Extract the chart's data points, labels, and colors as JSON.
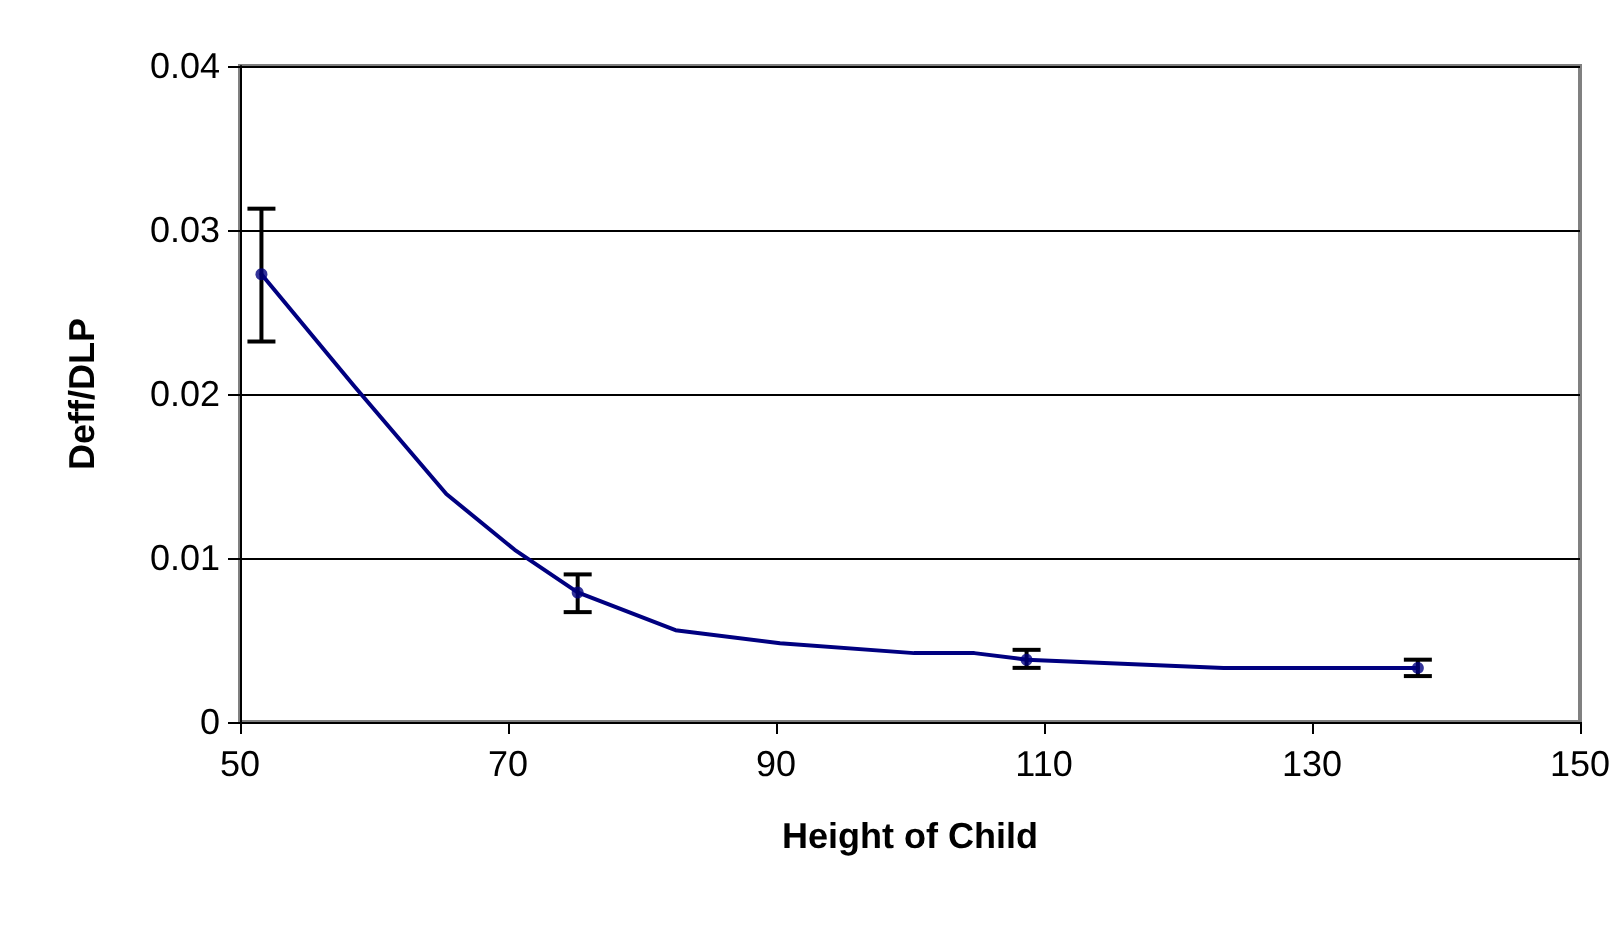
{
  "chart_data": {
    "type": "line",
    "xlabel": "Height of Child",
    "ylabel": "Deff/DLP",
    "xlim": [
      50,
      150
    ],
    "xticks": [
      50,
      70,
      90,
      110,
      130,
      150
    ],
    "ylim": [
      0,
      0.04
    ],
    "yticks": [
      0,
      0.01,
      0.02,
      0.03,
      0.04
    ],
    "grid": "y",
    "series": [
      {
        "color": "#000080",
        "marker": "none",
        "x": [
          51.6,
          58.5,
          65.4,
          70.5,
          75.2,
          82.5,
          90.3,
          100.3,
          104.8,
          108.7,
          123.4,
          137.9
        ],
        "values": [
          0.0273,
          0.0205,
          0.0139,
          0.0105,
          0.0079,
          0.0056,
          0.0048,
          0.0042,
          0.0042,
          0.0038,
          0.0033,
          0.0033
        ]
      },
      {
        "type": "scatter",
        "color": "#000080",
        "marker": "circle",
        "x": [
          51.6,
          75.2,
          108.7,
          137.9
        ],
        "values": [
          0.0273,
          0.0079,
          0.0038,
          0.0033
        ],
        "errors": [
          [
            0.0232,
            0.0313
          ],
          [
            0.0067,
            0.009
          ],
          [
            0.0033,
            0.0044
          ],
          [
            0.0028,
            0.0038
          ]
        ]
      }
    ]
  }
}
